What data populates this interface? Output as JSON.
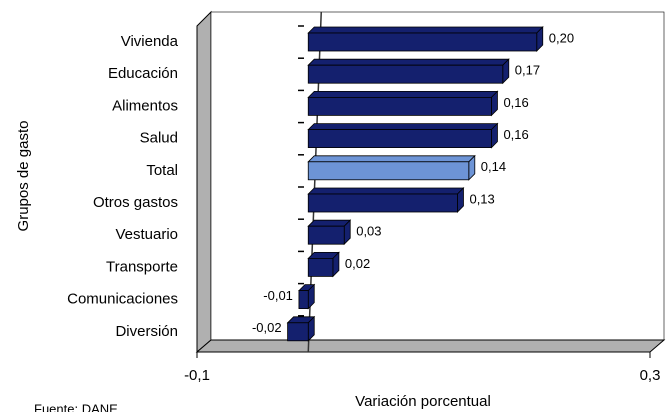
{
  "chart_data": {
    "type": "bar",
    "orientation": "horizontal",
    "categories": [
      "Vivienda",
      "Educación",
      "Alimentos",
      "Salud",
      "Total",
      "Otros gastos",
      "Vestuario",
      "Transporte",
      "Comunicaciones",
      "Diversión"
    ],
    "values": [
      0.2,
      0.17,
      0.16,
      0.16,
      0.14,
      0.13,
      0.03,
      0.02,
      -0.01,
      -0.02
    ],
    "value_labels": [
      "0,20",
      "0,17",
      "0,16",
      "0,16",
      "0,14",
      "0,13",
      "0,03",
      "0,02",
      "-0,01",
      "-0,02"
    ],
    "colors": [
      "#14206e",
      "#14206e",
      "#14206e",
      "#14206e",
      "#6d94d6",
      "#14206e",
      "#14206e",
      "#14206e",
      "#14206e",
      "#14206e"
    ],
    "xlim": [
      -0.1,
      0.3
    ],
    "xticks": [
      {
        "value": -0.1,
        "label": "-0,1"
      },
      {
        "value": 0.3,
        "label": "0,3"
      }
    ],
    "xlabel": "Variación porcentual",
    "ylabel": "Grupos de gasto",
    "source": "Fuente: DANE"
  }
}
